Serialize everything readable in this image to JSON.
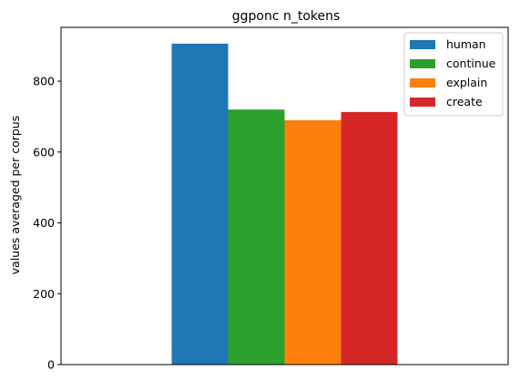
{
  "chart_data": {
    "type": "bar",
    "title": "ggponc n_tokens",
    "xlabel": "",
    "ylabel": "values averaged per corpus",
    "categories": [
      ""
    ],
    "series": [
      {
        "name": "human",
        "values": [
          906
        ],
        "color": "#1f77b4"
      },
      {
        "name": "continue",
        "values": [
          720
        ],
        "color": "#2ca02c"
      },
      {
        "name": "explain",
        "values": [
          690
        ],
        "color": "#ff7f0e"
      },
      {
        "name": "create",
        "values": [
          713
        ],
        "color": "#d62728"
      }
    ],
    "ylim": [
      0,
      952
    ],
    "yticks": [
      0,
      200,
      400,
      600,
      800
    ],
    "legend_position": "top-right",
    "grid": false
  }
}
